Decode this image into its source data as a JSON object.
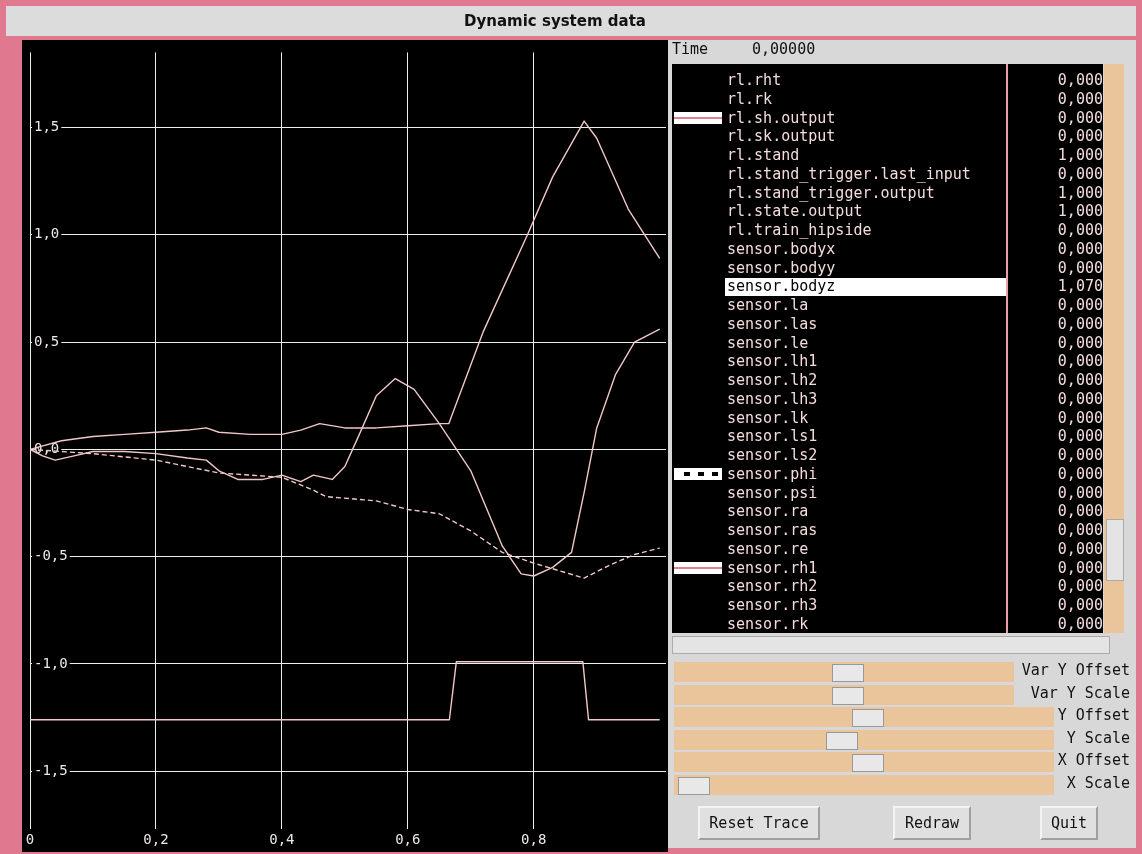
{
  "chart_data": {
    "type": "line",
    "title": "Dynamic system data",
    "xlim": [
      0,
      1.01
    ],
    "ylim": [
      -1.77,
      1.85
    ],
    "xticks": [
      0,
      {
        "value": 0.2,
        "label": "0,2"
      },
      {
        "value": 0.4,
        "label": "0,4"
      },
      {
        "value": 0.6,
        "label": "0,6"
      },
      {
        "value": 0.8,
        "label": "0,8"
      }
    ],
    "yticks": [
      {
        "value": -1.5,
        "label": "-1,5"
      },
      {
        "value": -1,
        "label": "-1,0"
      },
      {
        "value": -0.5,
        "label": "-0,5"
      },
      {
        "value": 0,
        "label": "0,0"
      },
      {
        "value": 0.5,
        "label": "0,5"
      },
      {
        "value": 1,
        "label": "1,0"
      },
      {
        "value": 1.5,
        "label": "1,5"
      }
    ],
    "grid": true,
    "legend": false,
    "marker": "none",
    "series": [
      {
        "type": "line",
        "color": "#f0c8c8",
        "line_style": "solid",
        "x": [
          0,
          0.05,
          0.1,
          0.15,
          0.2,
          0.25,
          0.28,
          0.3,
          0.35,
          0.4,
          0.43,
          0.46,
          0.5,
          0.55,
          0.6,
          0.65,
          0.665,
          0.72,
          0.79,
          0.83,
          0.88,
          0.9,
          0.95,
          1.0
        ],
        "values": [
          0,
          0.04,
          0.06,
          0.07,
          0.08,
          0.09,
          0.1,
          0.08,
          0.07,
          0.07,
          0.09,
          0.12,
          0.1,
          0.1,
          0.11,
          0.12,
          0.12,
          0.55,
          1.0,
          1.27,
          1.53,
          1.45,
          1.12,
          0.89
        ]
      },
      {
        "type": "line",
        "color": "#f0c8c8",
        "line_style": "solid",
        "x": [
          0,
          0.02,
          0.04,
          0.07,
          0.1,
          0.15,
          0.2,
          0.25,
          0.28,
          0.3,
          0.33,
          0.37,
          0.4,
          0.43,
          0.45,
          0.48,
          0.5,
          0.52,
          0.55,
          0.58,
          0.61,
          0.65,
          0.7,
          0.75,
          0.78,
          0.8,
          0.83,
          0.86,
          0.88,
          0.9,
          0.93,
          0.96,
          1.0
        ],
        "values": [
          0,
          -0.03,
          -0.05,
          -0.03,
          -0.01,
          -0.01,
          -0.02,
          -0.04,
          -0.05,
          -0.1,
          -0.14,
          -0.14,
          -0.12,
          -0.15,
          -0.12,
          -0.14,
          -0.08,
          0.05,
          0.25,
          0.33,
          0.28,
          0.12,
          -0.1,
          -0.45,
          -0.58,
          -0.59,
          -0.55,
          -0.48,
          -0.2,
          0.1,
          0.35,
          0.5,
          0.56
        ]
      },
      {
        "type": "line",
        "color": "#f0c8c8",
        "line_style": "dashed",
        "x": [
          0,
          0.1,
          0.2,
          0.3,
          0.4,
          0.45,
          0.47,
          0.55,
          0.6,
          0.65,
          0.7,
          0.75,
          0.8,
          0.88,
          0.92,
          0.96,
          1.0
        ],
        "values": [
          0,
          -0.02,
          -0.05,
          -0.11,
          -0.13,
          -0.19,
          -0.22,
          -0.24,
          -0.28,
          -0.3,
          -0.38,
          -0.48,
          -0.53,
          -0.6,
          -0.54,
          -0.49,
          -0.46
        ]
      },
      {
        "type": "line",
        "color": "#f0c8c8",
        "line_style": "solid",
        "x": [
          0,
          0.666,
          0.677,
          0.878,
          0.887,
          1.0
        ],
        "values": [
          -1.26,
          -1.26,
          -0.99,
          -0.99,
          -1.26,
          -1.26
        ]
      }
    ],
    "annotations": [
      "Time",
      "0,00000",
      "rl.rht",
      "0,000",
      "rl.rk",
      "0,000",
      "rl.sh.output",
      "0,000",
      "rl.sk.output",
      "0,000",
      "rl.stand",
      "1,000",
      "rl.stand_trigger.last_input",
      "0,000",
      "rl.stand_trigger.output",
      "1,000",
      "rl.state.output",
      "1,000",
      "rl.train_hipside",
      "0,000",
      "sensor.bodyx",
      "0,000",
      "sensor.bodyy",
      "0,000",
      "sensor.bodyz",
      "1,070",
      "sensor.la",
      "0,000",
      "sensor.las",
      "0,000",
      "sensor.le",
      "0,000",
      "sensor.lh1",
      "0,000",
      "sensor.lh2",
      "0,000",
      "sensor.lh3",
      "0,000",
      "sensor.lk",
      "0,000",
      "sensor.ls1",
      "0,000",
      "sensor.ls2",
      "0,000",
      "sensor.phi",
      "0,000",
      "sensor.psi",
      "0,000",
      "sensor.ra",
      "0,000",
      "sensor.ras",
      "0,000",
      "sensor.re",
      "0,000",
      "sensor.rh1",
      "0,000",
      "sensor.rh2",
      "0,000",
      "sensor.rh3",
      "0,000",
      "sensor.rk",
      "0,000",
      "Var Y Offset",
      "Var Y Scale",
      "Y Offset",
      "Y Scale",
      "X Offset",
      "X Scale",
      "Reset Trace",
      "Redraw",
      "Quit"
    ]
  }
}
